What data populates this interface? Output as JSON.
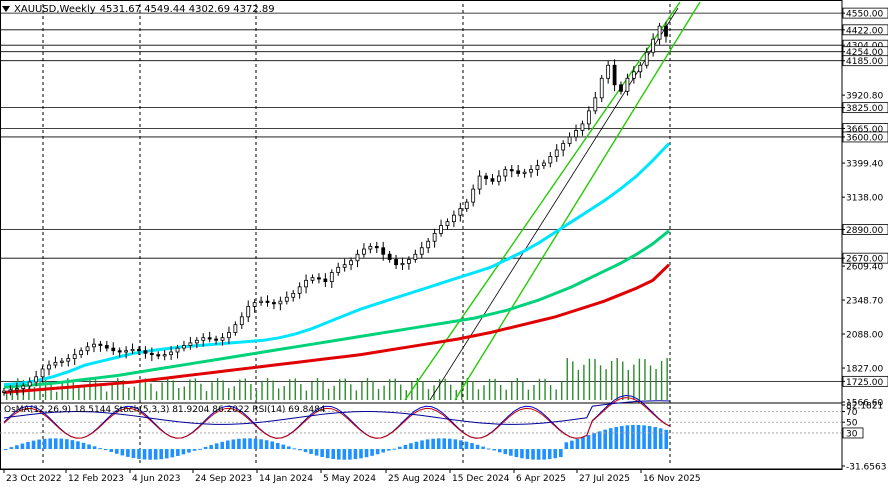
{
  "window": {
    "title": "XAUUSD,Weekly",
    "ohlc": "4531.67 4549.44 4302.69 4372.89"
  },
  "indicators_label": "OsMA(12,26,9) 18.5144  Stoch(5,3,3) 81.9204 86.2022  RSI(14) 69.8484",
  "colors": {
    "background": "#ffffff",
    "candle": "#000000",
    "ma_fast": "#00e5ff",
    "ma_mid": "#00d27a",
    "ma_slow": "#e00000",
    "channel": "#22cc00",
    "volume": "#2e8b2e",
    "osma": "#1e90ff",
    "stoch_main": "#0000cc",
    "stoch_signal": "#cc0000",
    "rsi": "#000099",
    "hline": "#000000"
  },
  "price_axis": {
    "labels": [
      "4550.00",
      "4422.00",
      "4304.00",
      "4254.00",
      "4185.00",
      "3920.80",
      "3825.00",
      "3665.00",
      "3600.00",
      "3399.40",
      "3138.00",
      "2890.00",
      "2670.00",
      "2609.40",
      "2348.70",
      "2088.00",
      "1827.00",
      "1725.00",
      "1566.60"
    ]
  },
  "levels": [
    "4550.00",
    "4422.00",
    "4304.00",
    "4254.00",
    "4185.00",
    "3825.00",
    "3665.00",
    "3600.00",
    "2890.00",
    "2670.00",
    "1725.00"
  ],
  "sub_axis": {
    "labels": [
      "82.1821",
      "70",
      "50",
      "30",
      "-31.6563"
    ],
    "highlight": "30"
  },
  "time_axis": {
    "labels": [
      "23 Oct 2022",
      "12 Feb 2023",
      "4 Jun 2023",
      "24 Sep 2023",
      "14 Jan 2024",
      "5 May 2024",
      "25 Aug 2024",
      "15 Dec 2024",
      "6 Apr 2025",
      "27 Jul 2025",
      "16 Nov 2025"
    ]
  },
  "chart_data": {
    "type": "candlestick",
    "symbol": "XAUUSD",
    "timeframe": "Weekly",
    "ylim": [
      1566.6,
      4600
    ],
    "close_path": [
      1650,
      1660,
      1670,
      1690,
      1720,
      1760,
      1820,
      1850,
      1870,
      1880,
      1900,
      1930,
      1960,
      1990,
      2010,
      2000,
      1980,
      1960,
      1950,
      1960,
      1970,
      1960,
      1940,
      1930,
      1920,
      1930,
      1950,
      1980,
      2000,
      2020,
      2040,
      2060,
      2050,
      2040,
      2060,
      2100,
      2160,
      2220,
      2300,
      2330,
      2340,
      2330,
      2320,
      2340,
      2370,
      2400,
      2450,
      2500,
      2520,
      2510,
      2490,
      2560,
      2600,
      2620,
      2650,
      2700,
      2740,
      2760,
      2750,
      2700,
      2660,
      2620,
      2630,
      2660,
      2700,
      2750,
      2800,
      2860,
      2920,
      2950,
      3000,
      3050,
      3100,
      3200,
      3300,
      3280,
      3260,
      3300,
      3350,
      3340,
      3320,
      3330,
      3350,
      3380,
      3400,
      3450,
      3500,
      3550,
      3600,
      3650,
      3700,
      3800,
      3900,
      4050,
      4150,
      4000,
      3950,
      4050,
      4100,
      4150,
      4250,
      4350,
      4450,
      4372.89
    ],
    "ma_fast": [
      1700,
      1710,
      1730,
      1760,
      1800,
      1850,
      1880,
      1910,
      1940,
      1960,
      1975,
      1990,
      2000,
      2010,
      2020,
      2030,
      2040,
      2060,
      2090,
      2130,
      2180,
      2230,
      2280,
      2320,
      2360,
      2400,
      2440,
      2480,
      2520,
      2560,
      2600,
      2660,
      2720,
      2790,
      2870,
      2950,
      3030,
      3110,
      3200,
      3300,
      3420,
      3550
    ],
    "ma_mid": [
      1680,
      1690,
      1700,
      1710,
      1725,
      1740,
      1755,
      1770,
      1790,
      1810,
      1830,
      1850,
      1870,
      1890,
      1910,
      1930,
      1950,
      1970,
      1990,
      2010,
      2030,
      2050,
      2070,
      2090,
      2110,
      2130,
      2150,
      2170,
      2190,
      2210,
      2240,
      2270,
      2310,
      2350,
      2400,
      2450,
      2510,
      2570,
      2630,
      2700,
      2780,
      2880
    ],
    "ma_slow": [
      1640,
      1650,
      1660,
      1670,
      1680,
      1690,
      1700,
      1710,
      1720,
      1735,
      1750,
      1765,
      1780,
      1795,
      1810,
      1825,
      1840,
      1855,
      1870,
      1885,
      1900,
      1915,
      1930,
      1950,
      1970,
      1990,
      2010,
      2030,
      2050,
      2075,
      2100,
      2130,
      2160,
      2190,
      2220,
      2260,
      2300,
      2340,
      2390,
      2440,
      2500,
      2620
    ]
  }
}
